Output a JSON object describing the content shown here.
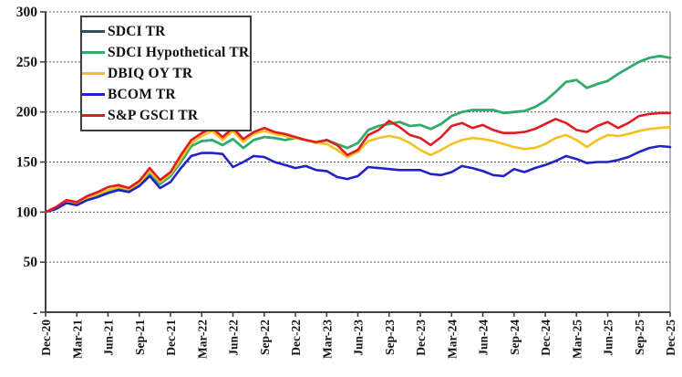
{
  "chart_data": {
    "type": "line",
    "title": "",
    "xlabel": "",
    "ylabel": "",
    "x_unit": "monthly from Dec-20 to Dec-25 (index, Dec-20 = 100)",
    "x_tick_labels": [
      "Dec-20",
      "Mar-21",
      "Jun-21",
      "Sep-21",
      "Dec-21",
      "Mar-22",
      "Jun-22",
      "Sep-22",
      "Dec-22",
      "Mar-23",
      "Jun-23",
      "Sep-23",
      "Dec-23",
      "Mar-24",
      "Jun-24",
      "Sep-24",
      "Dec-24",
      "Mar-25",
      "Jun-25",
      "Sep-25",
      "Dec-25"
    ],
    "y_axis": {
      "min": 0,
      "max": 300,
      "tick_values": [
        300,
        250,
        200,
        150,
        100,
        50,
        0
      ],
      "tick_labels": [
        "300",
        "250",
        "200",
        "150",
        "100",
        "50",
        "-"
      ],
      "gridlines": "dotted"
    },
    "legend_position": "top-left",
    "series": [
      {
        "name": "SDCI TR",
        "color": "#2F4D6E",
        "note_visual": "coincides with SDCI Hypothetical TR and is hidden beneath it",
        "values": [
          100,
          104,
          110,
          108,
          113,
          117,
          121,
          124,
          122,
          128,
          139,
          128,
          136,
          150,
          166,
          171,
          172,
          167,
          173,
          164,
          172,
          175,
          174,
          172,
          174,
          172,
          169,
          172,
          168,
          164,
          169,
          182,
          186,
          188,
          190,
          186,
          187,
          183,
          188,
          196,
          200,
          202,
          202,
          202,
          199,
          200,
          201,
          205,
          211,
          220,
          230,
          232,
          224,
          228,
          231,
          238,
          244,
          250,
          254,
          256,
          254
        ]
      },
      {
        "name": "SDCI Hypothetical TR",
        "color": "#2FAE68",
        "values": [
          100,
          104,
          110,
          108,
          113,
          117,
          121,
          124,
          122,
          128,
          139,
          128,
          136,
          150,
          166,
          171,
          172,
          167,
          173,
          164,
          172,
          175,
          174,
          172,
          174,
          172,
          169,
          172,
          168,
          164,
          169,
          182,
          186,
          188,
          190,
          186,
          187,
          183,
          188,
          196,
          200,
          202,
          202,
          202,
          199,
          200,
          201,
          205,
          211,
          220,
          230,
          232,
          224,
          228,
          231,
          238,
          244,
          250,
          254,
          256,
          254
        ]
      },
      {
        "name": "DBIQ OY TR",
        "color": "#F5C021",
        "values": [
          100,
          104,
          111,
          109,
          114,
          118,
          122,
          125,
          123,
          129,
          141,
          130,
          138,
          153,
          169,
          176,
          181,
          172,
          181,
          170,
          178,
          181,
          178,
          176,
          174,
          172,
          169,
          168,
          162,
          155,
          160,
          171,
          174,
          176,
          174,
          169,
          162,
          157,
          162,
          168,
          172,
          174,
          173,
          171,
          168,
          165,
          163,
          164,
          168,
          174,
          177,
          172,
          165,
          172,
          177,
          176,
          178,
          181,
          183,
          184,
          185
        ]
      },
      {
        "name": "BCOM TR",
        "color": "#2123C9",
        "values": [
          100,
          103,
          109,
          107,
          112,
          115,
          119,
          122,
          120,
          126,
          136,
          124,
          130,
          144,
          156,
          159,
          159,
          158,
          145,
          150,
          156,
          155,
          150,
          147,
          144,
          146,
          142,
          141,
          135,
          133,
          136,
          145,
          144,
          143,
          142,
          142,
          142,
          138,
          137,
          140,
          146,
          144,
          141,
          137,
          136,
          143,
          140,
          144,
          147,
          151,
          156,
          153,
          149,
          150,
          150,
          152,
          155,
          160,
          164,
          166,
          165
        ]
      },
      {
        "name": "S&P GSCI TR",
        "color": "#E11B22",
        "values": [
          100,
          105,
          112,
          110,
          116,
          120,
          125,
          127,
          124,
          131,
          144,
          132,
          140,
          157,
          172,
          179,
          184,
          175,
          184,
          173,
          180,
          184,
          180,
          178,
          175,
          172,
          170,
          172,
          167,
          157,
          162,
          177,
          182,
          191,
          185,
          177,
          174,
          167,
          175,
          186,
          189,
          184,
          187,
          182,
          179,
          179,
          180,
          183,
          188,
          193,
          189,
          182,
          180,
          186,
          190,
          184,
          189,
          196,
          198,
          199,
          199
        ]
      }
    ],
    "style": {
      "grid_color": "#5a5a5a",
      "axis_color": "#404040",
      "right_border_color": "#9a9a9a",
      "plot_background": "#ffffff"
    }
  }
}
